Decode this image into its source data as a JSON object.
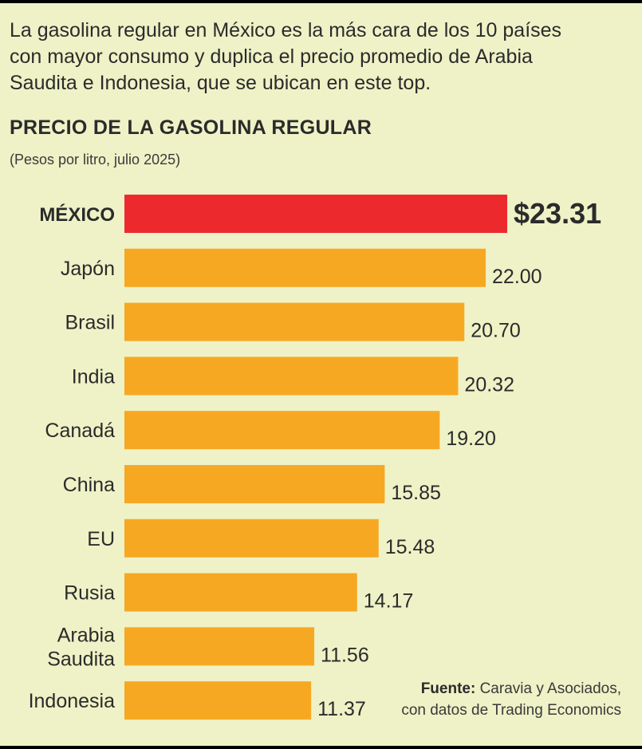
{
  "intro": {
    "line1": "La gasolina regular en México es la más cara de los 10 países",
    "line2": "con mayor consumo y duplica el precio promedio de Arabia",
    "line3": "Saudita e Indonesia, que se ubican en este top."
  },
  "chart_data": {
    "type": "bar",
    "orientation": "horizontal",
    "title": "PRECIO DE LA GASOLINA REGULAR",
    "subtitle": "(Pesos por litro, julio 2025)",
    "categories": [
      "MÉXICO",
      "Japón",
      "Brasil",
      "India",
      "Canadá",
      "China",
      "EU",
      "Rusia",
      "Arabia Saudita",
      "Indonesia"
    ],
    "category_lines": [
      [
        "MÉXICO"
      ],
      [
        "Japón"
      ],
      [
        "Brasil"
      ],
      [
        "India"
      ],
      [
        "Canadá"
      ],
      [
        "China"
      ],
      [
        "EU"
      ],
      [
        "Rusia"
      ],
      [
        "Arabia",
        "Saudita"
      ],
      [
        "Indonesia"
      ]
    ],
    "values": [
      23.31,
      22.0,
      20.7,
      20.32,
      19.2,
      15.85,
      15.48,
      14.17,
      11.56,
      11.37
    ],
    "value_labels": [
      "$23.31",
      "22.00",
      "20.70",
      "20.32",
      "19.20",
      "15.85",
      "15.48",
      "14.17",
      "11.56",
      "11.37"
    ],
    "highlight_index": 0,
    "colors": {
      "highlight": "#ec2a2e",
      "bar": "#f7a823",
      "background": "#eef2c6",
      "text": "#2b2b2b"
    },
    "grid": false,
    "legend": "none"
  },
  "source": {
    "label": "Fuente:",
    "line1": "Caravia y Asociados,",
    "line2": "con datos de Trading Economics"
  }
}
